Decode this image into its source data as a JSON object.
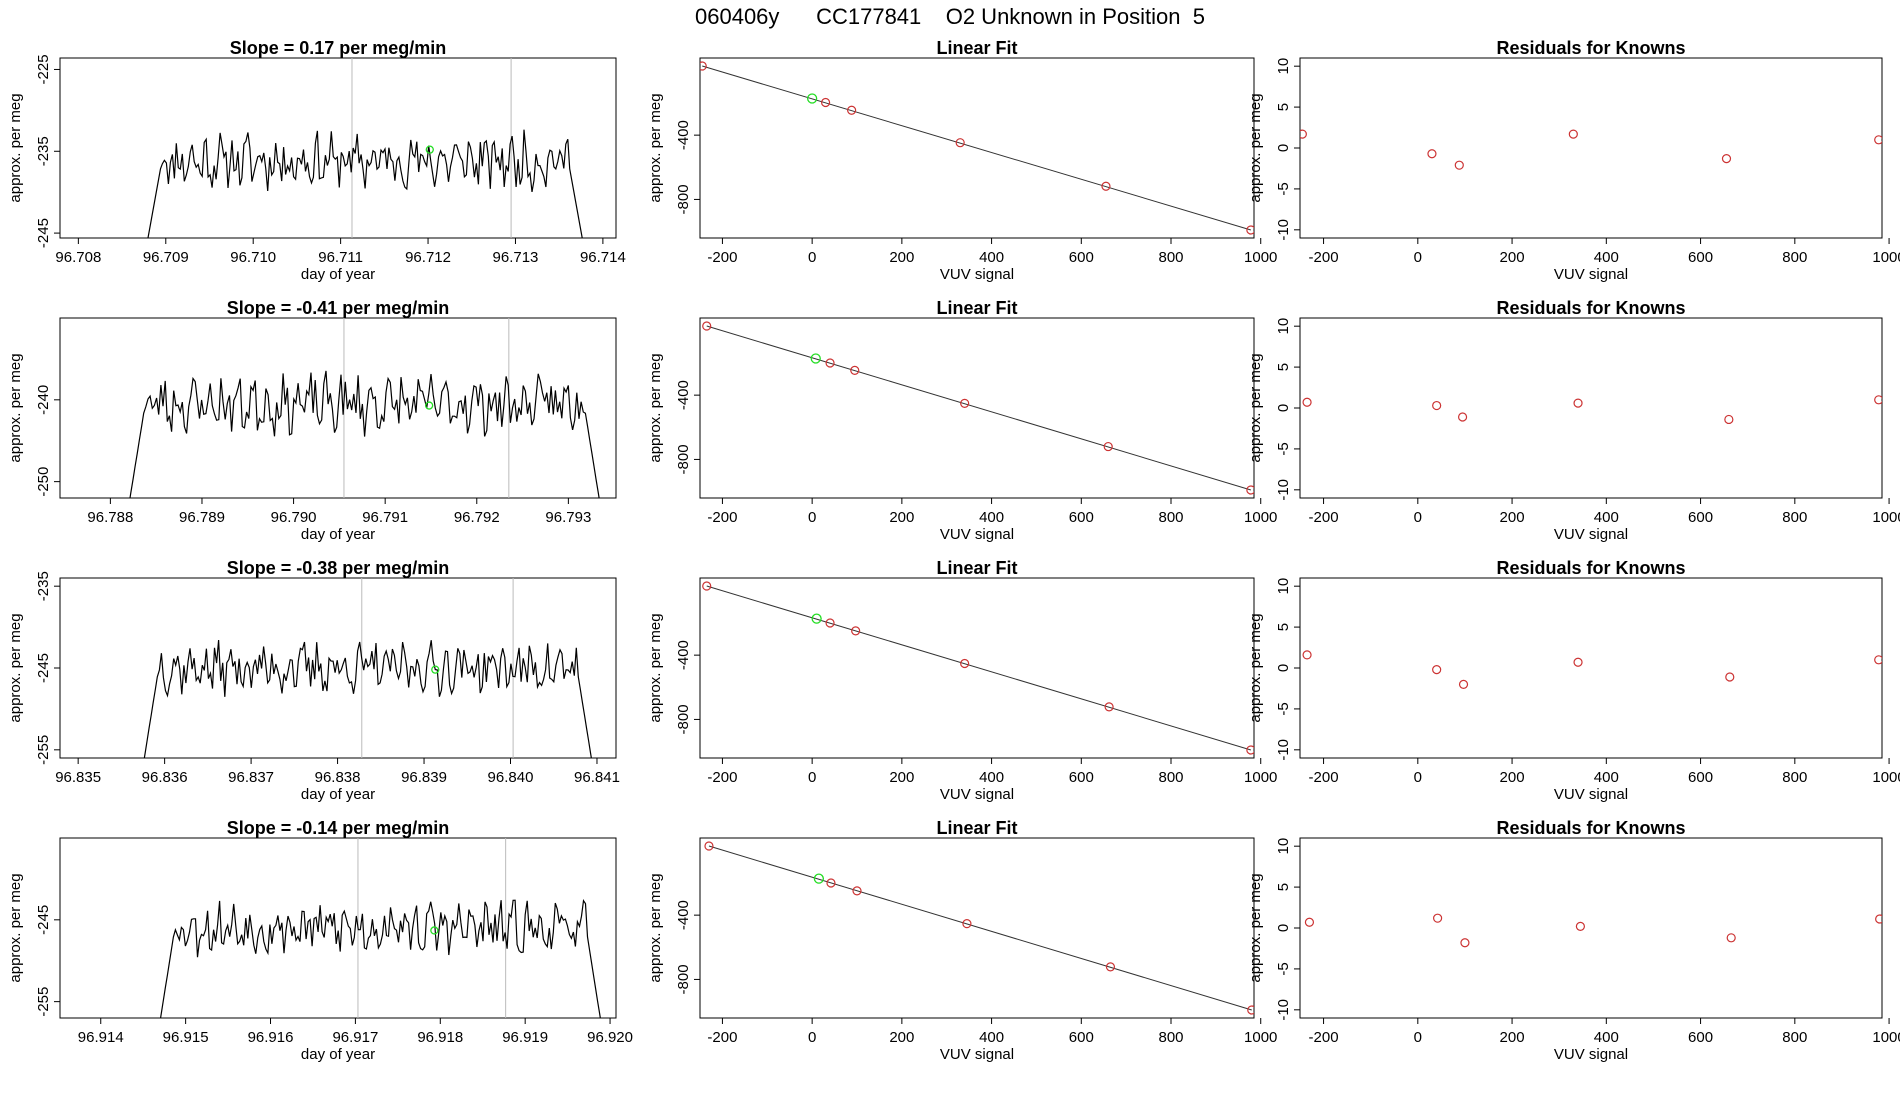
{
  "figure": {
    "title": "060406y      CC177841    O2 Unknown in Position  5"
  },
  "colors": {
    "trace": "#000000",
    "marker_green": "#22dd22",
    "marker_red": "#cc3333",
    "vline": "#bbbbbb",
    "fit_line": "#333333"
  },
  "chart_data": [
    {
      "type": "line",
      "id": "trace-1",
      "title": "Slope =  0.17  per meg/min",
      "xlabel": "day of year",
      "ylabel": "approx. per meg",
      "xlim": [
        96.70779,
        96.71415
      ],
      "ylim": [
        -245.6,
        -223.6
      ],
      "xticks": [
        "96.708",
        "96.709",
        "96.710",
        "96.711",
        "96.712",
        "96.713",
        "96.714"
      ],
      "yticks": [
        "-225",
        "-235",
        "-245"
      ],
      "trace_start": 96.70878,
      "trace_end": 96.71378,
      "base": -236.2,
      "amplitude": 2.6,
      "seed": 11,
      "vlines": [
        96.71113,
        96.71295
      ],
      "marker": {
        "x": 96.71202,
        "y": -234.8
      }
    },
    {
      "type": "scatter",
      "id": "fit-1",
      "title": "Linear Fit",
      "xlabel": "VUV signal",
      "ylabel": "approx. per meg",
      "xlim": [
        -250,
        985
      ],
      "ylim": [
        -1040,
        80
      ],
      "xticks": [
        "-200",
        "0",
        "200",
        "400",
        "600",
        "800",
        "1000"
      ],
      "yticks": [
        "-400",
        "-800"
      ],
      "fit_line": {
        "x": [
          -245,
          978
        ],
        "y": [
          30,
          -990
        ]
      },
      "points_x": [
        -245,
        30,
        88,
        330,
        655,
        978
      ],
      "points_y": [
        30,
        -197,
        -245,
        -447,
        -718,
        -990
      ],
      "green_point": {
        "x": 0,
        "y": -172
      }
    },
    {
      "type": "scatter",
      "id": "resid-1",
      "title": "Residuals for Knowns",
      "xlabel": "VUV signal",
      "ylabel": "approx. per meg",
      "xlim": [
        -250,
        985
      ],
      "ylim": [
        -11,
        11
      ],
      "xticks": [
        "-200",
        "0",
        "200",
        "400",
        "600",
        "800",
        "1000"
      ],
      "yticks": [
        "10",
        "5",
        "0",
        "-5",
        "-10"
      ],
      "points_x": [
        -245,
        30,
        88,
        330,
        655,
        978
      ],
      "points_y": [
        1.7,
        -0.7,
        -2.1,
        1.7,
        -1.3,
        1.0
      ]
    },
    {
      "type": "line",
      "id": "trace-2",
      "title": "Slope =  -0.41  per meg/min",
      "xlabel": "day of year",
      "ylabel": "approx. per meg",
      "xlim": [
        96.78745,
        96.79352
      ],
      "ylim": [
        -252.0,
        -230.0
      ],
      "xticks": [
        "96.788",
        "96.789",
        "96.790",
        "96.791",
        "96.792",
        "96.793"
      ],
      "yticks": [
        "-240",
        "-250"
      ],
      "trace_start": 96.7882,
      "trace_end": 96.79335,
      "base": -240.5,
      "amplitude": 2.8,
      "seed": 23,
      "vlines": [
        96.79055,
        96.79235
      ],
      "marker": {
        "x": 96.79148,
        "y": -240.7
      }
    },
    {
      "type": "scatter",
      "id": "fit-2",
      "title": "Linear Fit",
      "xlabel": "VUV signal",
      "ylabel": "approx. per meg",
      "xlim": [
        -250,
        985
      ],
      "ylim": [
        -1040,
        80
      ],
      "xticks": [
        "-200",
        "0",
        "200",
        "400",
        "600",
        "800",
        "1000"
      ],
      "yticks": [
        "-400",
        "-800"
      ],
      "fit_line": {
        "x": [
          -235,
          978
        ],
        "y": [
          30,
          -990
        ]
      },
      "points_x": [
        -235,
        40,
        95,
        340,
        660,
        978
      ],
      "points_y": [
        30,
        -200,
        -246,
        -451,
        -720,
        -990
      ],
      "green_point": {
        "x": 8,
        "y": -172
      }
    },
    {
      "type": "scatter",
      "id": "resid-2",
      "title": "Residuals for Knowns",
      "xlabel": "VUV signal",
      "ylabel": "approx. per meg",
      "xlim": [
        -250,
        985
      ],
      "ylim": [
        -11,
        11
      ],
      "xticks": [
        "-200",
        "0",
        "200",
        "400",
        "600",
        "800",
        "1000"
      ],
      "yticks": [
        "10",
        "5",
        "0",
        "-5",
        "-10"
      ],
      "points_x": [
        -235,
        40,
        95,
        340,
        660,
        978
      ],
      "points_y": [
        0.7,
        0.3,
        -1.1,
        0.6,
        -1.4,
        1.0
      ]
    },
    {
      "type": "line",
      "id": "trace-3",
      "title": "Slope =  -0.38  per meg/min",
      "xlabel": "day of year",
      "ylabel": "approx. per meg",
      "xlim": [
        96.83479,
        96.84122
      ],
      "ylim": [
        -256.0,
        -234.0
      ],
      "xticks": [
        "96.835",
        "96.836",
        "96.837",
        "96.838",
        "96.839",
        "96.840",
        "96.841"
      ],
      "yticks": [
        "-235",
        "-245",
        "-255"
      ],
      "trace_start": 96.83575,
      "trace_end": 96.84095,
      "base": -245.0,
      "amplitude": 2.4,
      "seed": 37,
      "vlines": [
        96.83828,
        96.84003
      ],
      "marker": {
        "x": 96.83913,
        "y": -245.2
      }
    },
    {
      "type": "scatter",
      "id": "fit-3",
      "title": "Linear Fit",
      "xlabel": "VUV signal",
      "ylabel": "approx. per meg",
      "xlim": [
        -250,
        985
      ],
      "ylim": [
        -1040,
        80
      ],
      "xticks": [
        "-200",
        "0",
        "200",
        "400",
        "600",
        "800",
        "1000"
      ],
      "yticks": [
        "-400",
        "-800"
      ],
      "fit_line": {
        "x": [
          -235,
          978
        ],
        "y": [
          30,
          -990
        ]
      },
      "points_x": [
        -235,
        40,
        97,
        340,
        662,
        978
      ],
      "points_y": [
        30,
        -200,
        -249,
        -452,
        -722,
        -990
      ],
      "green_point": {
        "x": 10,
        "y": -173
      }
    },
    {
      "type": "scatter",
      "id": "resid-3",
      "title": "Residuals for Knowns",
      "xlabel": "VUV signal",
      "ylabel": "approx. per meg",
      "xlim": [
        -250,
        985
      ],
      "ylim": [
        -11,
        11
      ],
      "xticks": [
        "-200",
        "0",
        "200",
        "400",
        "600",
        "800",
        "1000"
      ],
      "yticks": [
        "10",
        "5",
        "0",
        "-5",
        "-10"
      ],
      "points_x": [
        -235,
        40,
        97,
        340,
        662,
        978
      ],
      "points_y": [
        1.6,
        -0.2,
        -2.0,
        0.7,
        -1.1,
        1.0
      ]
    },
    {
      "type": "line",
      "id": "trace-4",
      "title": "Slope =  -0.14  per meg/min",
      "xlabel": "day of year",
      "ylabel": "approx. per meg",
      "xlim": [
        96.91352,
        96.92007
      ],
      "ylim": [
        -257.0,
        -235.0
      ],
      "xticks": [
        "96.914",
        "96.915",
        "96.916",
        "96.917",
        "96.918",
        "96.919",
        "96.920"
      ],
      "yticks": [
        "-245",
        "-255"
      ],
      "trace_start": 96.91469,
      "trace_end": 96.9199,
      "base": -246.0,
      "amplitude": 2.5,
      "seed": 53,
      "vlines": [
        96.91703,
        96.91877
      ],
      "marker": {
        "x": 96.91793,
        "y": -246.3
      }
    },
    {
      "type": "scatter",
      "id": "fit-4",
      "title": "Linear Fit",
      "xlabel": "VUV signal",
      "ylabel": "approx. per meg",
      "xlim": [
        -250,
        985
      ],
      "ylim": [
        -1040,
        80
      ],
      "xticks": [
        "-200",
        "0",
        "200",
        "400",
        "600",
        "800",
        "1000"
      ],
      "yticks": [
        "-400",
        "-800"
      ],
      "fit_line": {
        "x": [
          -230,
          980
        ],
        "y": [
          30,
          -990
        ]
      },
      "points_x": [
        -230,
        42,
        100,
        345,
        665,
        980
      ],
      "points_y": [
        30,
        -200,
        -249,
        -453,
        -722,
        -990
      ],
      "green_point": {
        "x": 15,
        "y": -173
      }
    },
    {
      "type": "scatter",
      "id": "resid-4",
      "title": "Residuals for Knowns",
      "xlabel": "VUV signal",
      "ylabel": "approx. per meg",
      "xlim": [
        -250,
        985
      ],
      "ylim": [
        -11,
        11
      ],
      "xticks": [
        "-200",
        "0",
        "200",
        "400",
        "600",
        "800",
        "1000"
      ],
      "yticks": [
        "10",
        "5",
        "0",
        "-5",
        "-10"
      ],
      "points_x": [
        -230,
        42,
        100,
        345,
        665,
        980
      ],
      "points_y": [
        0.7,
        1.2,
        -1.8,
        0.2,
        -1.2,
        1.1
      ]
    }
  ]
}
